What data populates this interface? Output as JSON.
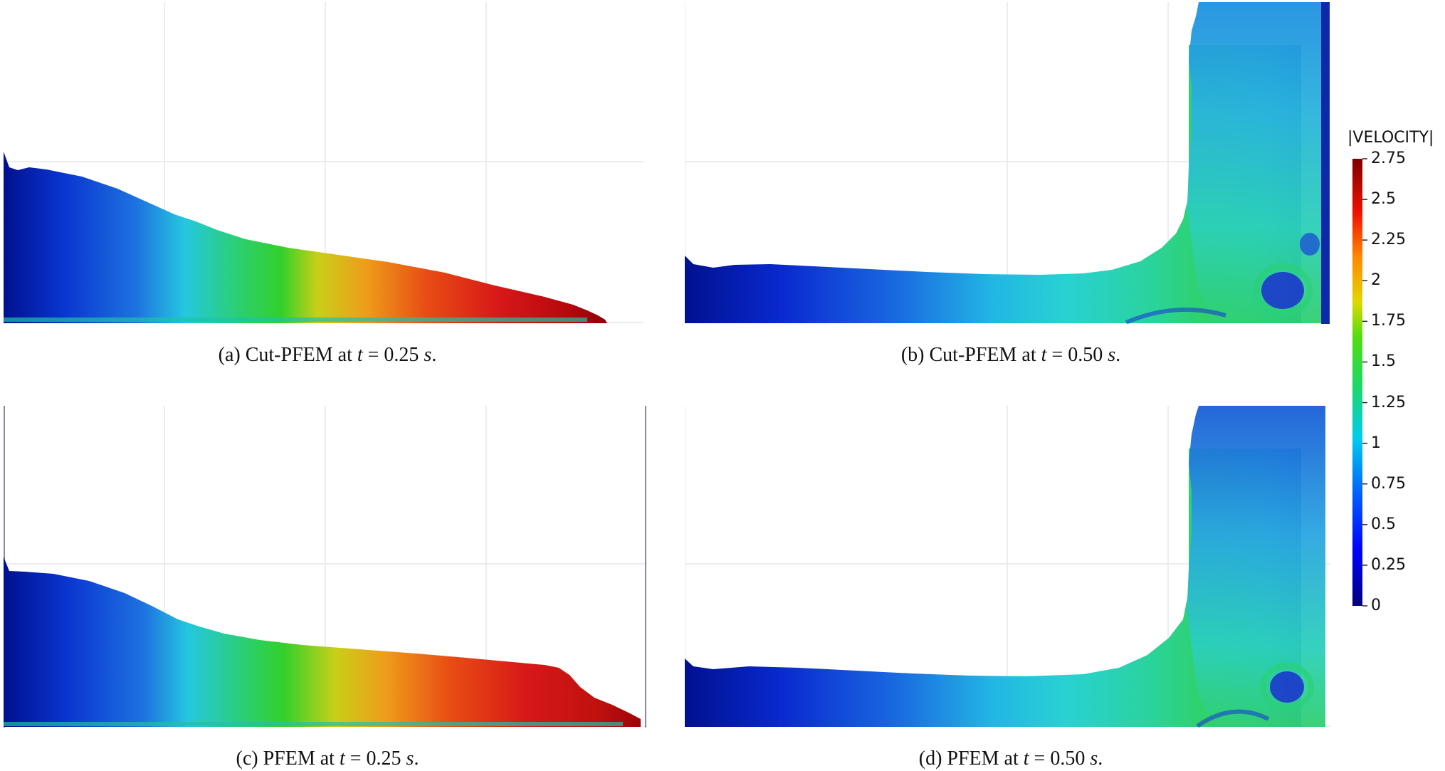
{
  "figure": {
    "panels": [
      {
        "id": "a",
        "method": "Cut-PFEM",
        "time": "0.25",
        "shape": "dambreak"
      },
      {
        "id": "b",
        "method": "Cut-PFEM",
        "time": "0.50",
        "shape": "runup"
      },
      {
        "id": "c",
        "method": "PFEM",
        "time": "0.25",
        "shape": "dambreak"
      },
      {
        "id": "d",
        "method": "PFEM",
        "time": "0.50",
        "shape": "runup"
      }
    ],
    "captions": {
      "a": {
        "prefix": "(a) Cut-PFEM at",
        "var": "t",
        "eq": " = 0.25 ",
        "unit": "s",
        "end": "."
      },
      "b": {
        "prefix": "(b) Cut-PFEM at",
        "var": "t",
        "eq": " = 0.50 ",
        "unit": "s",
        "end": "."
      },
      "c": {
        "prefix": "(c) PFEM at",
        "var": "t",
        "eq": " = 0.25 ",
        "unit": "s",
        "end": "."
      },
      "d": {
        "prefix": "(d) PFEM at",
        "var": "t",
        "eq": " = 0.50 ",
        "unit": "s",
        "end": "."
      }
    }
  },
  "colorbar": {
    "title": "|VELOCITY|",
    "min": 0,
    "max": 2.75,
    "ticks": [
      "2.75",
      "2.5",
      "2.25",
      "2",
      "1.75",
      "1.5",
      "1.25",
      "1",
      "0.75",
      "0.5",
      "0.25",
      "0"
    ],
    "colormap": [
      "#00007f",
      "#0000ff",
      "#0080ff",
      "#00e5e5",
      "#00d400",
      "#d4d400",
      "#ff8000",
      "#e00000",
      "#7f0000"
    ]
  }
}
